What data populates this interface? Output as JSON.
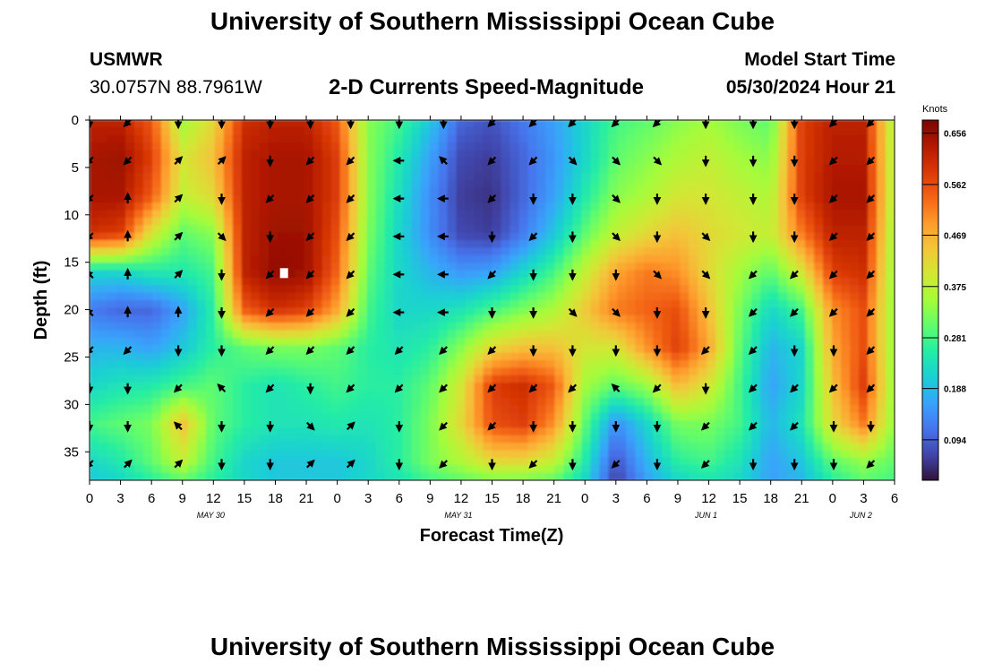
{
  "header": {
    "title": "University of Southern Mississippi Ocean Cube",
    "station": "USMWR",
    "coords": "30.0757N  88.7961W",
    "subtitle": "2-D Currents Speed-Magnitude",
    "model_label": "Model Start Time",
    "model_time": "05/30/2024 Hour 21"
  },
  "footer": {
    "title": "University of Southern Mississippi Ocean Cube"
  },
  "chart_data": {
    "type": "heatmap",
    "title": "2-D Currents Speed-Magnitude",
    "xlabel": "Forecast Time(Z)",
    "ylabel": "Depth (ft)",
    "xlim": [
      0,
      78
    ],
    "ylim": [
      38,
      0
    ],
    "x_ticks": [
      0,
      3,
      6,
      9,
      12,
      15,
      18,
      21,
      24,
      27,
      30,
      33,
      36,
      39,
      42,
      45,
      48,
      51,
      54,
      57,
      60,
      63,
      66,
      69,
      72,
      75,
      78
    ],
    "x_tick_labels": [
      "0",
      "3",
      "6",
      "9",
      "12",
      "15",
      "18",
      "21",
      "0",
      "3",
      "6",
      "9",
      "12",
      "15",
      "18",
      "21",
      "0",
      "3",
      "6",
      "9",
      "12",
      "15",
      "18",
      "21",
      "0",
      "3",
      "6"
    ],
    "y_ticks": [
      0,
      5,
      10,
      15,
      20,
      25,
      30,
      35
    ],
    "y_tick_labels": [
      "0",
      "5",
      "10",
      "15",
      "20",
      "25",
      "30",
      "35"
    ],
    "date_labels": [
      {
        "x": 12,
        "label": "MAY 30"
      },
      {
        "x": 36,
        "label": "MAY 31"
      },
      {
        "x": 60,
        "label": "JUN 1"
      },
      {
        "x": 75,
        "label": "JUN 2"
      }
    ],
    "colorbar": {
      "unit": "Knots",
      "min": 0.02,
      "max": 0.68,
      "tick_values": [
        0.656,
        0.562,
        0.469,
        0.375,
        0.281,
        0.188,
        0.094
      ],
      "tick_labels": [
        "0.656",
        "0.562",
        "0.469",
        "0.375",
        "0.281",
        "0.188",
        "0.094"
      ],
      "colors": [
        "#30123b",
        "#4145ab",
        "#4675ed",
        "#39a2fc",
        "#1bcfd4",
        "#24eca6",
        "#61fc6c",
        "#a4fc3b",
        "#d1e834",
        "#f3c63a",
        "#fe9b2d",
        "#f36315",
        "#d93806",
        "#b11901",
        "#7a0403"
      ]
    },
    "speed_x": [
      0,
      3,
      6,
      9,
      12,
      15,
      18,
      21,
      24,
      27,
      30,
      33,
      36,
      39,
      42,
      45,
      48,
      51,
      54,
      57,
      60,
      63,
      66,
      69,
      72,
      75,
      78
    ],
    "speed_depth": [
      0,
      4,
      8,
      12,
      16,
      20,
      24,
      28,
      32,
      36,
      38
    ],
    "speed": [
      [
        0.62,
        0.62,
        0.55,
        0.35,
        0.42,
        0.6,
        0.62,
        0.62,
        0.55,
        0.33,
        0.28,
        0.2,
        0.1,
        0.08,
        0.12,
        0.16,
        0.22,
        0.28,
        0.3,
        0.33,
        0.35,
        0.32,
        0.3,
        0.58,
        0.62,
        0.62,
        0.35
      ],
      [
        0.64,
        0.65,
        0.58,
        0.4,
        0.45,
        0.62,
        0.64,
        0.64,
        0.58,
        0.33,
        0.25,
        0.16,
        0.07,
        0.06,
        0.1,
        0.15,
        0.22,
        0.3,
        0.33,
        0.36,
        0.38,
        0.35,
        0.33,
        0.58,
        0.63,
        0.63,
        0.35
      ],
      [
        0.64,
        0.64,
        0.55,
        0.38,
        0.42,
        0.62,
        0.64,
        0.64,
        0.58,
        0.33,
        0.23,
        0.14,
        0.06,
        0.05,
        0.1,
        0.16,
        0.25,
        0.33,
        0.36,
        0.4,
        0.4,
        0.38,
        0.36,
        0.58,
        0.64,
        0.64,
        0.35
      ],
      [
        0.6,
        0.58,
        0.4,
        0.3,
        0.33,
        0.62,
        0.65,
        0.65,
        0.56,
        0.32,
        0.22,
        0.14,
        0.07,
        0.06,
        0.12,
        0.2,
        0.3,
        0.38,
        0.42,
        0.45,
        0.42,
        0.4,
        0.38,
        0.52,
        0.62,
        0.62,
        0.34
      ],
      [
        0.22,
        0.22,
        0.25,
        0.25,
        0.28,
        0.62,
        0.66,
        0.65,
        0.54,
        0.3,
        0.22,
        0.18,
        0.15,
        0.16,
        0.22,
        0.28,
        0.38,
        0.48,
        0.52,
        0.5,
        0.42,
        0.35,
        0.3,
        0.4,
        0.58,
        0.6,
        0.33
      ],
      [
        0.12,
        0.1,
        0.1,
        0.16,
        0.26,
        0.55,
        0.6,
        0.58,
        0.48,
        0.28,
        0.22,
        0.22,
        0.24,
        0.28,
        0.32,
        0.36,
        0.44,
        0.52,
        0.54,
        0.56,
        0.45,
        0.32,
        0.22,
        0.28,
        0.5,
        0.56,
        0.33
      ],
      [
        0.18,
        0.18,
        0.16,
        0.2,
        0.26,
        0.3,
        0.32,
        0.32,
        0.3,
        0.26,
        0.24,
        0.26,
        0.33,
        0.42,
        0.45,
        0.45,
        0.4,
        0.4,
        0.5,
        0.58,
        0.48,
        0.3,
        0.18,
        0.22,
        0.48,
        0.56,
        0.33
      ],
      [
        0.22,
        0.24,
        0.25,
        0.28,
        0.3,
        0.26,
        0.24,
        0.26,
        0.28,
        0.26,
        0.26,
        0.3,
        0.4,
        0.58,
        0.6,
        0.55,
        0.35,
        0.3,
        0.34,
        0.46,
        0.4,
        0.28,
        0.16,
        0.22,
        0.45,
        0.58,
        0.33
      ],
      [
        0.28,
        0.3,
        0.32,
        0.45,
        0.3,
        0.26,
        0.24,
        0.24,
        0.25,
        0.24,
        0.26,
        0.32,
        0.42,
        0.56,
        0.58,
        0.5,
        0.3,
        0.14,
        0.22,
        0.32,
        0.32,
        0.28,
        0.18,
        0.24,
        0.42,
        0.52,
        0.33
      ],
      [
        0.22,
        0.25,
        0.3,
        0.38,
        0.28,
        0.22,
        0.2,
        0.2,
        0.2,
        0.22,
        0.26,
        0.32,
        0.36,
        0.42,
        0.42,
        0.38,
        0.25,
        0.08,
        0.18,
        0.26,
        0.28,
        0.24,
        0.16,
        0.2,
        0.3,
        0.34,
        0.3
      ],
      [
        0.2,
        0.22,
        0.26,
        0.3,
        0.26,
        0.22,
        0.2,
        0.2,
        0.2,
        0.22,
        0.24,
        0.28,
        0.3,
        0.32,
        0.32,
        0.3,
        0.22,
        0.06,
        0.16,
        0.22,
        0.24,
        0.22,
        0.16,
        0.18,
        0.26,
        0.3,
        0.28
      ]
    ],
    "vector_x": [
      0,
      3.7,
      8.6,
      12.8,
      17.5,
      21.4,
      25.3,
      30.0,
      34.3,
      39.0,
      43.0,
      46.8,
      51.0,
      55.0,
      59.7,
      64.3,
      68.3,
      72.1,
      75.7
    ],
    "vector_depth": [
      0,
      4,
      8,
      12,
      16,
      20,
      24,
      28,
      32,
      36
    ],
    "vector_dir_deg": [
      [
        90,
        135,
        90,
        90,
        90,
        90,
        90,
        90,
        90,
        135,
        135,
        135,
        135,
        135,
        90,
        90,
        90,
        135,
        135
      ],
      [
        135,
        135,
        -45,
        -45,
        90,
        135,
        135,
        180,
        225,
        135,
        135,
        45,
        45,
        45,
        90,
        90,
        90,
        135,
        135
      ],
      [
        135,
        -90,
        -45,
        90,
        135,
        135,
        135,
        180,
        180,
        135,
        90,
        90,
        45,
        90,
        90,
        90,
        90,
        135,
        135
      ],
      [
        135,
        -90,
        -45,
        45,
        90,
        135,
        135,
        180,
        180,
        90,
        135,
        90,
        45,
        90,
        45,
        90,
        90,
        135,
        135
      ],
      [
        -135,
        -90,
        -45,
        90,
        135,
        135,
        135,
        180,
        180,
        135,
        90,
        90,
        90,
        45,
        45,
        135,
        135,
        135,
        135
      ],
      [
        225,
        -90,
        -90,
        90,
        135,
        135,
        135,
        180,
        180,
        90,
        90,
        45,
        45,
        90,
        90,
        135,
        135,
        135,
        135
      ],
      [
        135,
        135,
        90,
        90,
        135,
        135,
        135,
        135,
        135,
        135,
        90,
        90,
        90,
        90,
        135,
        135,
        90,
        90,
        135
      ],
      [
        90,
        90,
        135,
        225,
        135,
        90,
        135,
        135,
        135,
        135,
        135,
        135,
        225,
        135,
        90,
        135,
        135,
        135,
        135
      ],
      [
        90,
        90,
        225,
        90,
        90,
        45,
        315,
        90,
        135,
        135,
        90,
        90,
        90,
        90,
        135,
        135,
        135,
        90,
        90
      ],
      [
        135,
        -45,
        -45,
        90,
        90,
        -45,
        -45,
        90,
        135,
        90,
        135,
        90,
        135,
        90,
        135,
        90,
        90,
        90,
        135
      ]
    ],
    "marker": {
      "x": 18.8,
      "depth": 16,
      "color": "#ffffff"
    }
  }
}
